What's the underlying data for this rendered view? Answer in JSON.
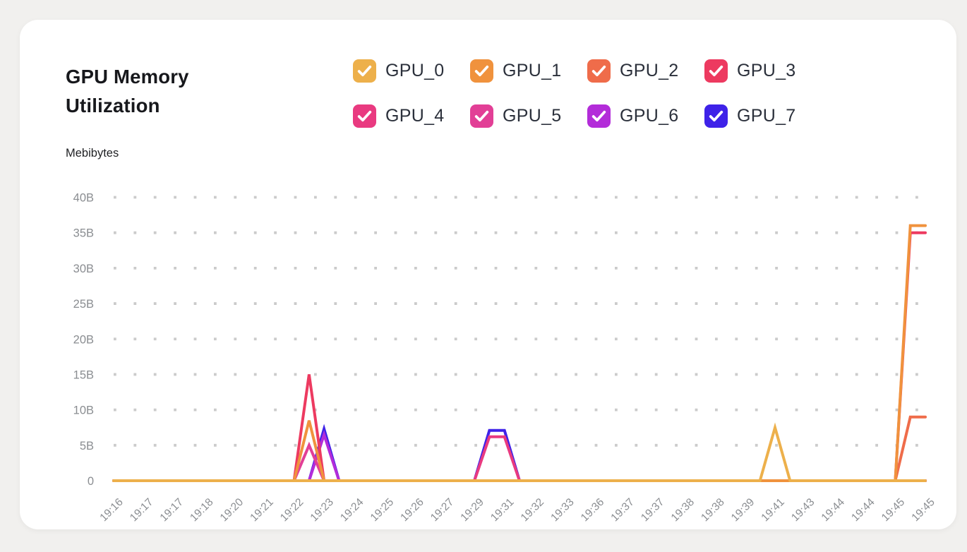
{
  "page": {
    "background_color": "#f1f0ee",
    "card_background_color": "#ffffff"
  },
  "header": {
    "title": "GPU Memory Utilization",
    "unit_label": "Mebibytes"
  },
  "colors": {
    "grid": "#cbcbcb",
    "axis_text": "#8a8d91",
    "title_text": "#17181c",
    "legend_text": "#2b303b",
    "checkmark": "#ffffff"
  },
  "chart_data": {
    "type": "line",
    "title": "GPU Memory Utilization",
    "ylabel": "Mebibytes",
    "xlabel": "",
    "ylim": [
      0,
      40
    ],
    "grid": "horizontal-dotted",
    "legend_position": "top",
    "y_ticks": [
      {
        "label": "40B",
        "value": 40
      },
      {
        "label": "35B",
        "value": 35
      },
      {
        "label": "30B",
        "value": 30
      },
      {
        "label": "25B",
        "value": 25
      },
      {
        "label": "20B",
        "value": 20
      },
      {
        "label": "15B",
        "value": 15
      },
      {
        "label": "10B",
        "value": 10
      },
      {
        "label": "5B",
        "value": 5
      },
      {
        "label": "0",
        "value": 0
      }
    ],
    "x_tick_labels": [
      "19:16",
      "19:17",
      "19:17",
      "19:18",
      "19:20",
      "19:21",
      "19:22",
      "19:23",
      "19:24",
      "19:25",
      "19:26",
      "19:27",
      "19:29",
      "19:31",
      "19:32",
      "19:33",
      "19:36",
      "19:37",
      "19:37",
      "19:38",
      "19:38",
      "19:39",
      "19:41",
      "19:43",
      "19:44",
      "19:44",
      "19:45",
      "19:45"
    ],
    "x_point_count": 55,
    "x_labels_every": 2,
    "series": [
      {
        "name": "GPU_0",
        "color": "#EDB04B",
        "baseline": 0,
        "points": [
          {
            "x": 44,
            "y": 7.5
          }
        ]
      },
      {
        "name": "GPU_1",
        "color": "#F0923D",
        "baseline": 0,
        "points": [
          {
            "x": 13,
            "y": 8.5
          },
          {
            "x": 53,
            "y": 36
          },
          {
            "x": 54,
            "y": 36
          }
        ]
      },
      {
        "name": "GPU_2",
        "color": "#EF6C4A",
        "baseline": 0,
        "points": [
          {
            "x": 53,
            "y": 9
          },
          {
            "x": 54,
            "y": 9
          }
        ]
      },
      {
        "name": "GPU_3",
        "color": "#ED3A60",
        "baseline": 0,
        "points": [
          {
            "x": 13,
            "y": 15
          },
          {
            "x": 53,
            "y": 35
          },
          {
            "x": 54,
            "y": 35
          }
        ]
      },
      {
        "name": "GPU_4",
        "color": "#E93A80",
        "baseline": 0,
        "points": [
          {
            "x": 25,
            "y": 6.2
          },
          {
            "x": 26,
            "y": 6.2
          }
        ]
      },
      {
        "name": "GPU_5",
        "color": "#E23F96",
        "baseline": 0,
        "points": [
          {
            "x": 13,
            "y": 5
          }
        ]
      },
      {
        "name": "GPU_6",
        "color": "#B32CD9",
        "baseline": 0,
        "points": [
          {
            "x": 14,
            "y": 6.5
          }
        ]
      },
      {
        "name": "GPU_7",
        "color": "#3E22E8",
        "baseline": 0,
        "points": [
          {
            "x": 14,
            "y": 7.3
          },
          {
            "x": 25,
            "y": 7.1
          },
          {
            "x": 26,
            "y": 7.1
          }
        ]
      }
    ]
  }
}
